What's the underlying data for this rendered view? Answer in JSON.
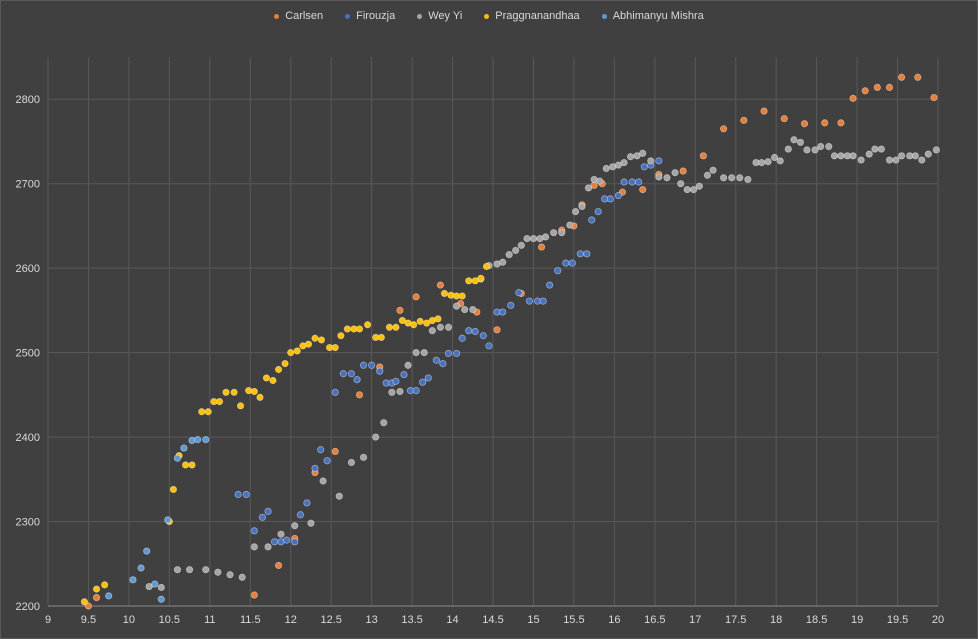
{
  "chart_data": {
    "type": "scatter",
    "xlim": [
      9,
      20
    ],
    "ylim": [
      2200,
      2850
    ],
    "x_ticks": [
      "9",
      "9.5",
      "10",
      "10.5",
      "11",
      "11.5",
      "12",
      "12.5",
      "13",
      "13.5",
      "14",
      "14.5",
      "15",
      "15.5",
      "16",
      "16.5",
      "17",
      "17.5",
      "18",
      "18.5",
      "19",
      "19.5",
      "20"
    ],
    "y_ticks": [
      "2200",
      "2300",
      "2400",
      "2500",
      "2600",
      "2700",
      "2800"
    ],
    "grid": true,
    "legend_position": "top",
    "series": [
      {
        "name": "Carlsen",
        "color": "#ed7d31",
        "points": [
          [
            9.5,
            2200
          ],
          [
            9.6,
            2210
          ],
          [
            11.55,
            2213
          ],
          [
            11.85,
            2248
          ],
          [
            12.05,
            2280
          ],
          [
            12.3,
            2358
          ],
          [
            12.55,
            2383
          ],
          [
            12.85,
            2450
          ],
          [
            13.1,
            2483
          ],
          [
            13.35,
            2550
          ],
          [
            13.55,
            2566
          ],
          [
            13.85,
            2580
          ],
          [
            14.1,
            2558
          ],
          [
            14.3,
            2548
          ],
          [
            14.55,
            2527
          ],
          [
            14.85,
            2570
          ],
          [
            15.1,
            2625
          ],
          [
            15.35,
            2645
          ],
          [
            15.5,
            2650
          ],
          [
            15.6,
            2675
          ],
          [
            15.75,
            2698
          ],
          [
            15.85,
            2700
          ],
          [
            16.1,
            2690
          ],
          [
            16.35,
            2693
          ],
          [
            16.55,
            2711
          ],
          [
            16.85,
            2715
          ],
          [
            17.1,
            2733
          ],
          [
            17.35,
            2765
          ],
          [
            17.6,
            2775
          ],
          [
            17.85,
            2786
          ],
          [
            18.1,
            2777
          ],
          [
            18.35,
            2771
          ],
          [
            18.6,
            2772
          ],
          [
            18.8,
            2772
          ],
          [
            18.95,
            2801
          ],
          [
            19.1,
            2810
          ],
          [
            19.25,
            2814
          ],
          [
            19.4,
            2814
          ],
          [
            19.55,
            2826
          ],
          [
            19.75,
            2826
          ],
          [
            19.95,
            2802
          ]
        ]
      },
      {
        "name": "Firouzja",
        "color": "#4472c4",
        "points": [
          [
            11.35,
            2332
          ],
          [
            11.45,
            2332
          ],
          [
            11.55,
            2289
          ],
          [
            11.65,
            2305
          ],
          [
            11.72,
            2312
          ],
          [
            11.8,
            2276
          ],
          [
            11.88,
            2276
          ],
          [
            11.95,
            2278
          ],
          [
            12.05,
            2276
          ],
          [
            12.12,
            2308
          ],
          [
            12.2,
            2322
          ],
          [
            12.3,
            2363
          ],
          [
            12.37,
            2385
          ],
          [
            12.45,
            2372
          ],
          [
            12.55,
            2453
          ],
          [
            12.65,
            2475
          ],
          [
            12.75,
            2475
          ],
          [
            12.82,
            2468
          ],
          [
            12.9,
            2485
          ],
          [
            13.0,
            2485
          ],
          [
            13.1,
            2478
          ],
          [
            13.18,
            2464
          ],
          [
            13.25,
            2464
          ],
          [
            13.3,
            2466
          ],
          [
            13.4,
            2474
          ],
          [
            13.48,
            2455
          ],
          [
            13.55,
            2455
          ],
          [
            13.63,
            2465
          ],
          [
            13.7,
            2470
          ],
          [
            13.8,
            2491
          ],
          [
            13.88,
            2487
          ],
          [
            13.95,
            2499
          ],
          [
            14.05,
            2499
          ],
          [
            14.12,
            2517
          ],
          [
            14.2,
            2526
          ],
          [
            14.28,
            2525
          ],
          [
            14.38,
            2520
          ],
          [
            14.45,
            2508
          ],
          [
            14.55,
            2548
          ],
          [
            14.62,
            2548
          ],
          [
            14.72,
            2556
          ],
          [
            14.82,
            2571
          ],
          [
            14.95,
            2561
          ],
          [
            15.05,
            2561
          ],
          [
            15.12,
            2561
          ],
          [
            15.2,
            2580
          ],
          [
            15.3,
            2597
          ],
          [
            15.4,
            2606
          ],
          [
            15.48,
            2606
          ],
          [
            15.58,
            2617
          ],
          [
            15.66,
            2617
          ],
          [
            15.72,
            2657
          ],
          [
            15.8,
            2667
          ],
          [
            15.88,
            2682
          ],
          [
            15.95,
            2682
          ],
          [
            16.05,
            2686
          ],
          [
            16.12,
            2702
          ],
          [
            16.22,
            2702
          ],
          [
            16.3,
            2702
          ],
          [
            16.37,
            2720
          ],
          [
            16.45,
            2722
          ],
          [
            16.55,
            2727
          ]
        ]
      },
      {
        "name": "Wey Yi",
        "color": "#a5a5a5",
        "points": [
          [
            10.25,
            2223
          ],
          [
            10.4,
            2222
          ],
          [
            10.6,
            2243
          ],
          [
            10.75,
            2243
          ],
          [
            10.95,
            2243
          ],
          [
            11.1,
            2240
          ],
          [
            11.25,
            2237
          ],
          [
            11.4,
            2234
          ],
          [
            11.55,
            2270
          ],
          [
            11.72,
            2270
          ],
          [
            11.88,
            2285
          ],
          [
            12.05,
            2295
          ],
          [
            12.25,
            2298
          ],
          [
            12.4,
            2348
          ],
          [
            12.6,
            2330
          ],
          [
            12.75,
            2370
          ],
          [
            12.9,
            2376
          ],
          [
            13.05,
            2400
          ],
          [
            13.15,
            2417
          ],
          [
            13.25,
            2453
          ],
          [
            13.35,
            2454
          ],
          [
            13.45,
            2485
          ],
          [
            13.55,
            2500
          ],
          [
            13.65,
            2500
          ],
          [
            13.75,
            2526
          ],
          [
            13.85,
            2530
          ],
          [
            13.95,
            2530
          ],
          [
            14.05,
            2555
          ],
          [
            14.15,
            2551
          ],
          [
            14.25,
            2551
          ],
          [
            14.35,
            2587
          ],
          [
            14.45,
            2603
          ],
          [
            14.55,
            2605
          ],
          [
            14.62,
            2607
          ],
          [
            14.7,
            2616
          ],
          [
            14.78,
            2621
          ],
          [
            14.85,
            2627
          ],
          [
            14.92,
            2635
          ],
          [
            15.0,
            2635
          ],
          [
            15.08,
            2635
          ],
          [
            15.15,
            2637
          ],
          [
            15.25,
            2642
          ],
          [
            15.35,
            2642
          ],
          [
            15.45,
            2651
          ],
          [
            15.52,
            2667
          ],
          [
            15.6,
            2673
          ],
          [
            15.68,
            2695
          ],
          [
            15.75,
            2705
          ],
          [
            15.82,
            2703
          ],
          [
            15.9,
            2718
          ],
          [
            15.98,
            2720
          ],
          [
            16.05,
            2722
          ],
          [
            16.12,
            2725
          ],
          [
            16.2,
            2732
          ],
          [
            16.28,
            2733
          ],
          [
            16.35,
            2736
          ],
          [
            16.45,
            2727
          ],
          [
            16.55,
            2708
          ],
          [
            16.65,
            2707
          ],
          [
            16.75,
            2713
          ],
          [
            16.82,
            2700
          ],
          [
            16.9,
            2693
          ],
          [
            16.98,
            2693
          ],
          [
            17.05,
            2697
          ],
          [
            17.15,
            2710
          ],
          [
            17.22,
            2716
          ],
          [
            17.35,
            2707
          ],
          [
            17.45,
            2707
          ],
          [
            17.55,
            2707
          ],
          [
            17.65,
            2705
          ],
          [
            17.75,
            2725
          ],
          [
            17.82,
            2725
          ],
          [
            17.9,
            2726
          ],
          [
            17.98,
            2731
          ],
          [
            18.05,
            2727
          ],
          [
            18.15,
            2741
          ],
          [
            18.22,
            2752
          ],
          [
            18.3,
            2749
          ],
          [
            18.38,
            2740
          ],
          [
            18.48,
            2740
          ],
          [
            18.55,
            2744
          ],
          [
            18.65,
            2744
          ],
          [
            18.72,
            2733
          ],
          [
            18.8,
            2733
          ],
          [
            18.88,
            2733
          ],
          [
            18.95,
            2733
          ],
          [
            19.05,
            2728
          ],
          [
            19.15,
            2735
          ],
          [
            19.22,
            2741
          ],
          [
            19.3,
            2741
          ],
          [
            19.4,
            2728
          ],
          [
            19.48,
            2728
          ],
          [
            19.55,
            2733
          ],
          [
            19.65,
            2733
          ],
          [
            19.72,
            2733
          ],
          [
            19.8,
            2728
          ],
          [
            19.88,
            2735
          ],
          [
            19.98,
            2740
          ]
        ]
      },
      {
        "name": "Praggnanandhaa",
        "color": "#ffc000",
        "points": [
          [
            9.45,
            2205
          ],
          [
            9.6,
            2220
          ],
          [
            9.7,
            2225
          ],
          [
            10.5,
            2300
          ],
          [
            10.55,
            2338
          ],
          [
            10.62,
            2378
          ],
          [
            10.7,
            2367
          ],
          [
            10.78,
            2367
          ],
          [
            10.9,
            2430
          ],
          [
            10.98,
            2430
          ],
          [
            11.05,
            2442
          ],
          [
            11.12,
            2442
          ],
          [
            11.2,
            2453
          ],
          [
            11.3,
            2453
          ],
          [
            11.38,
            2437
          ],
          [
            11.48,
            2455
          ],
          [
            11.55,
            2454
          ],
          [
            11.62,
            2447
          ],
          [
            11.7,
            2470
          ],
          [
            11.78,
            2467
          ],
          [
            11.85,
            2480
          ],
          [
            11.93,
            2487
          ],
          [
            12.0,
            2500
          ],
          [
            12.08,
            2502
          ],
          [
            12.15,
            2508
          ],
          [
            12.22,
            2510
          ],
          [
            12.3,
            2517
          ],
          [
            12.38,
            2515
          ],
          [
            12.48,
            2506
          ],
          [
            12.55,
            2506
          ],
          [
            12.62,
            2520
          ],
          [
            12.7,
            2528
          ],
          [
            12.78,
            2528
          ],
          [
            12.85,
            2528
          ],
          [
            12.95,
            2533
          ],
          [
            13.05,
            2518
          ],
          [
            13.12,
            2518
          ],
          [
            13.22,
            2530
          ],
          [
            13.3,
            2530
          ],
          [
            13.38,
            2538
          ],
          [
            13.45,
            2535
          ],
          [
            13.52,
            2533
          ],
          [
            13.6,
            2537
          ],
          [
            13.68,
            2535
          ],
          [
            13.75,
            2538
          ],
          [
            13.82,
            2540
          ],
          [
            13.9,
            2570
          ],
          [
            13.98,
            2568
          ],
          [
            14.05,
            2567
          ],
          [
            14.12,
            2567
          ],
          [
            14.2,
            2585
          ],
          [
            14.28,
            2585
          ],
          [
            14.35,
            2588
          ],
          [
            14.42,
            2602
          ]
        ]
      },
      {
        "name": "Abhimanyu Mishra",
        "color": "#5b9bd5",
        "points": [
          [
            9.75,
            2212
          ],
          [
            10.05,
            2231
          ],
          [
            10.15,
            2245
          ],
          [
            10.22,
            2265
          ],
          [
            10.32,
            2226
          ],
          [
            10.4,
            2208
          ],
          [
            10.48,
            2302
          ],
          [
            10.6,
            2375
          ],
          [
            10.68,
            2387
          ],
          [
            10.78,
            2396
          ],
          [
            10.85,
            2397
          ],
          [
            10.95,
            2397
          ]
        ]
      }
    ]
  }
}
